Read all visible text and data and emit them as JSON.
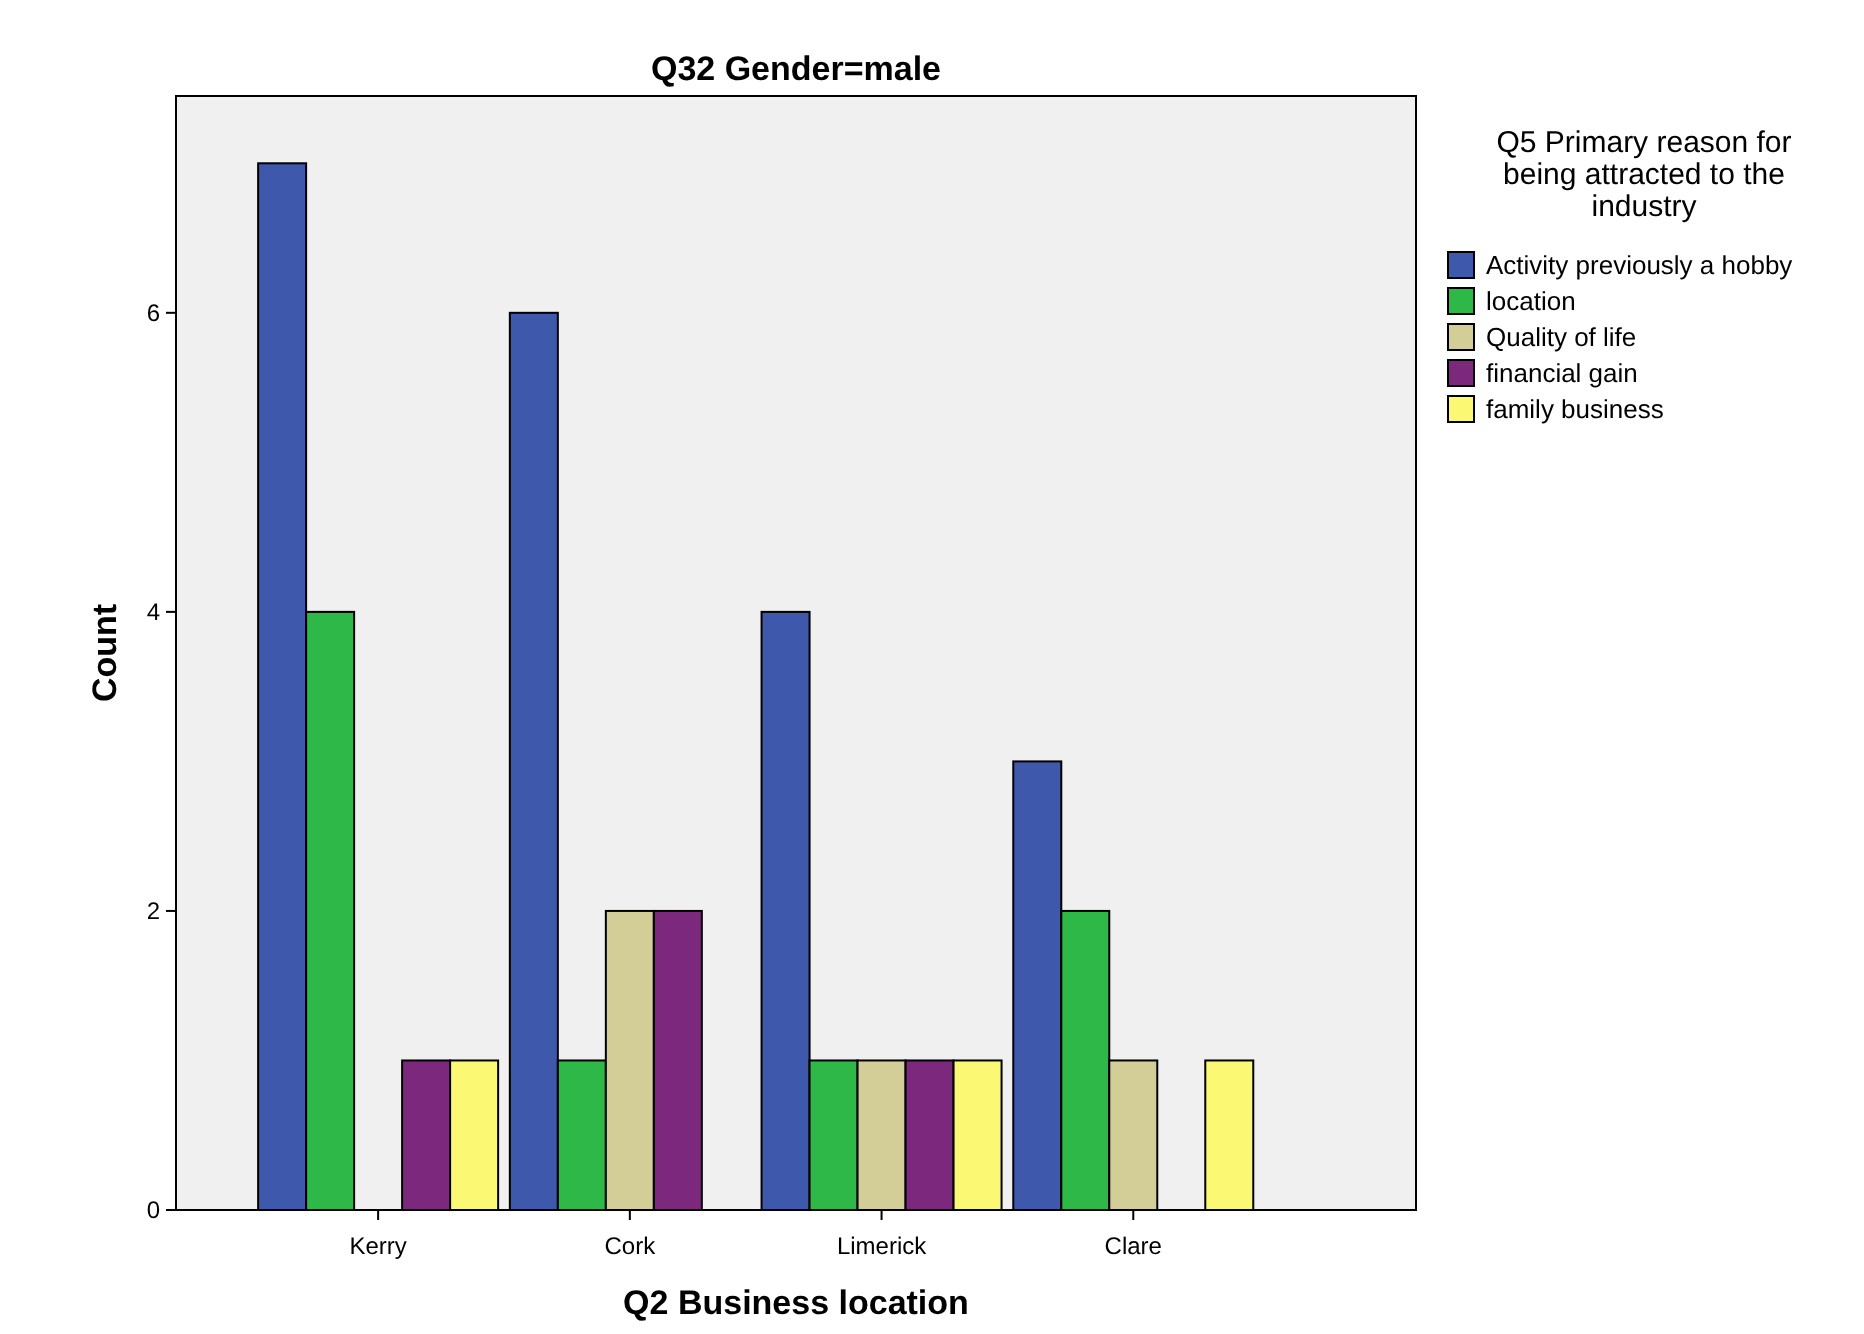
{
  "chart_data": {
    "type": "bar",
    "title": "Q32 Gender=male",
    "xlabel": "Q2 Business location",
    "ylabel": "Count",
    "legend_title": "Q5 Primary reason for being attracted to the industry",
    "categories": [
      "Kerry",
      "Cork",
      "Limerick",
      "Clare"
    ],
    "series": [
      {
        "name": "Activity previously a hobby",
        "color": "#3e58ac",
        "values": [
          7,
          6,
          4,
          3
        ]
      },
      {
        "name": "location",
        "color": "#2eb848",
        "values": [
          4,
          1,
          1,
          2
        ]
      },
      {
        "name": "Quality of life",
        "color": "#d3ce97",
        "values": [
          0,
          2,
          1,
          1
        ]
      },
      {
        "name": "financial gain",
        "color": "#7c287d",
        "values": [
          1,
          2,
          1,
          0
        ]
      },
      {
        "name": "family business",
        "color": "#fbf873",
        "values": [
          1,
          0,
          1,
          1
        ]
      }
    ],
    "ylim": [
      0,
      7.45
    ],
    "yticks": [
      0,
      2,
      4,
      6
    ],
    "grid": false,
    "legend": "right"
  }
}
